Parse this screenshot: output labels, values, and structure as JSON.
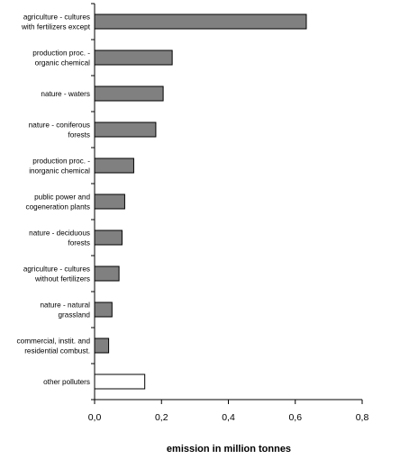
{
  "chart_data": {
    "type": "bar",
    "orientation": "horizontal",
    "categories": [
      [
        "agriculture - cultures",
        "with fertilizers except"
      ],
      [
        "production proc. -",
        "organic chemical"
      ],
      [
        "nature - waters"
      ],
      [
        "nature - coniferous",
        "forests"
      ],
      [
        "production proc. -",
        "inorganic chemical"
      ],
      [
        "public power and",
        "cogeneration plants"
      ],
      [
        "nature - deciduous",
        "forests"
      ],
      [
        "agriculture - cultures",
        "without fertilizers"
      ],
      [
        "nature - natural",
        "grassland"
      ],
      [
        "commercial, instit. and",
        "residential combust."
      ],
      [
        "other polluters"
      ]
    ],
    "values": [
      0.633,
      0.232,
      0.205,
      0.183,
      0.117,
      0.09,
      0.082,
      0.073,
      0.052,
      0.042,
      0.15
    ],
    "bar_colors": [
      "#808080",
      "#808080",
      "#808080",
      "#808080",
      "#808080",
      "#808080",
      "#808080",
      "#808080",
      "#808080",
      "#808080",
      "#ffffff"
    ],
    "xlim": [
      0,
      0.8
    ],
    "ticks": [
      0,
      0.2,
      0.4,
      0.6,
      0.8
    ],
    "tick_labels": [
      "0,0",
      "0,2",
      "0,4",
      "0,6",
      "0,8"
    ],
    "xlabel": "emission in million tonnes",
    "ylabel": "",
    "title": "",
    "grid": false,
    "legend": "none"
  }
}
